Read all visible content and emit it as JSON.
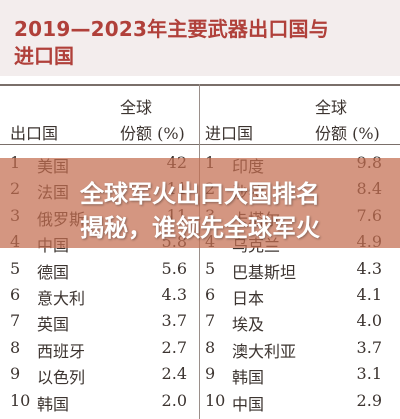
{
  "title": {
    "line1": "2019—2023年主要武器出口国与",
    "line2": "进口国"
  },
  "headers": {
    "export_country": "出口国",
    "export_share_line1": "全球",
    "export_share_line2": "份额 (%)",
    "import_country": "进口国",
    "import_share_line1": "全球",
    "import_share_line2": "份额 (%)"
  },
  "exporters": [
    {
      "rank": "1",
      "country": "美国",
      "share": "42"
    },
    {
      "rank": "2",
      "country": "法国",
      "share": "11"
    },
    {
      "rank": "3",
      "country": "俄罗斯",
      "share": "11"
    },
    {
      "rank": "4",
      "country": "中国",
      "share": "5.8"
    },
    {
      "rank": "5",
      "country": "德国",
      "share": "5.6"
    },
    {
      "rank": "6",
      "country": "意大利",
      "share": "4.3"
    },
    {
      "rank": "7",
      "country": "英国",
      "share": "3.7"
    },
    {
      "rank": "8",
      "country": "西班牙",
      "share": "2.7"
    },
    {
      "rank": "9",
      "country": "以色列",
      "share": "2.4"
    },
    {
      "rank": "10",
      "country": "韩国",
      "share": "2.0"
    }
  ],
  "importers": [
    {
      "rank": "1",
      "country": "印度",
      "share": "9.8"
    },
    {
      "rank": "2",
      "country": "沙特",
      "share": "8.4"
    },
    {
      "rank": "3",
      "country": "卡塔尔",
      "share": "7.6"
    },
    {
      "rank": "4",
      "country": "乌克兰",
      "share": "4.9"
    },
    {
      "rank": "5",
      "country": "巴基斯坦",
      "share": "4.3"
    },
    {
      "rank": "6",
      "country": "日本",
      "share": "4.1"
    },
    {
      "rank": "7",
      "country": "埃及",
      "share": "4.0"
    },
    {
      "rank": "8",
      "country": "澳大利亚",
      "share": "3.7"
    },
    {
      "rank": "9",
      "country": "韩国",
      "share": "3.1"
    },
    {
      "rank": "10",
      "country": "中国",
      "share": "2.9"
    }
  ],
  "banner": {
    "line1": "全球军火出口大国排名",
    "line2": "揭秘，谁领先全球军火"
  }
}
